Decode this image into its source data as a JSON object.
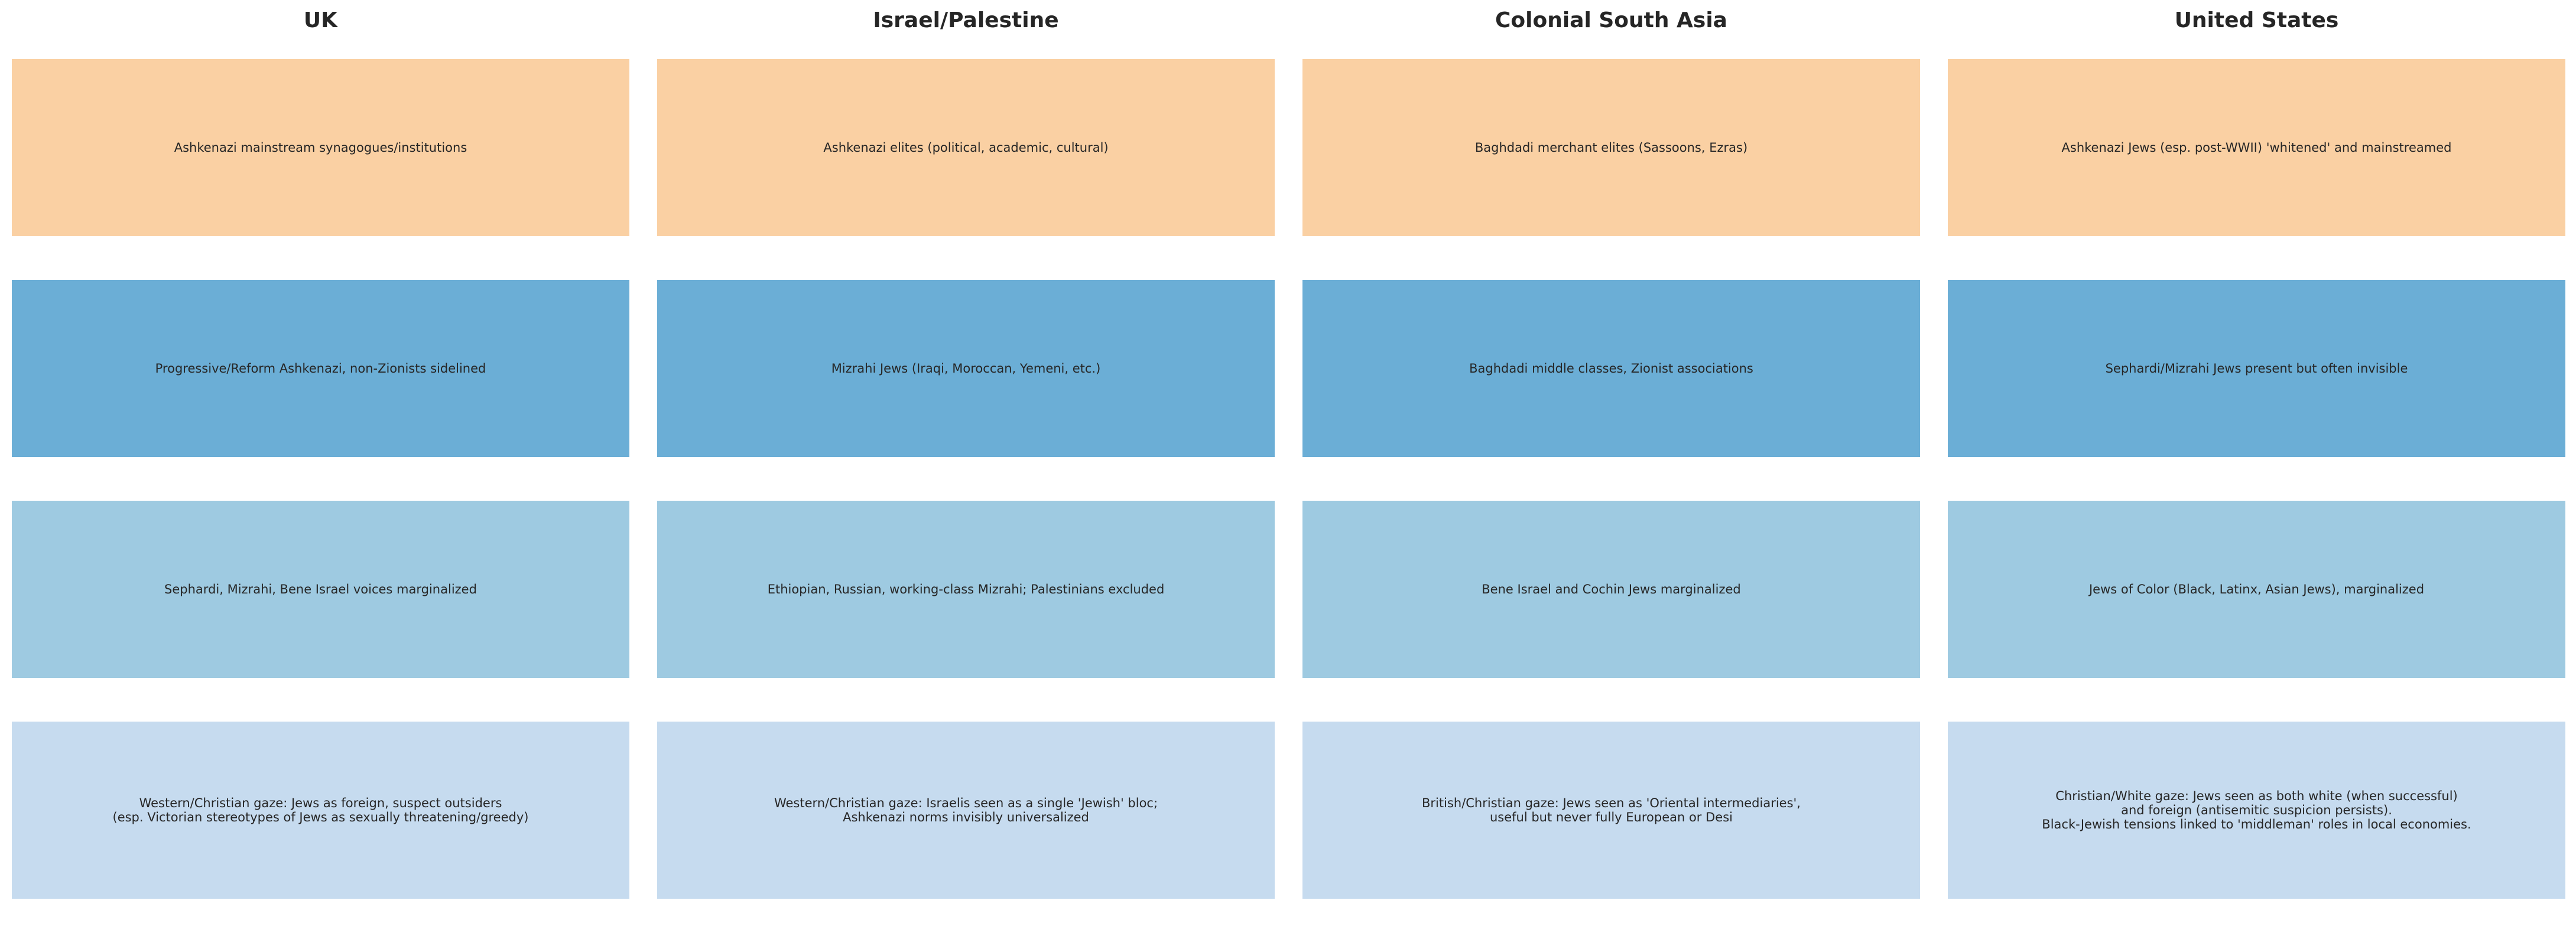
{
  "tier_colors": [
    "#fad0a3",
    "#6baed6",
    "#9ecae1",
    "#c6dbef"
  ],
  "columns": [
    {
      "title": "UK",
      "tiers": [
        "Ashkenazi mainstream synagogues/institutions",
        "Progressive/Reform Ashkenazi, non-Zionists sidelined",
        "Sephardi, Mizrahi, Bene Israel voices marginalized",
        "Western/Christian gaze: Jews as foreign, suspect outsiders\n(esp. Victorian stereotypes of Jews as sexually threatening/greedy)"
      ]
    },
    {
      "title": "Israel/Palestine",
      "tiers": [
        "Ashkenazi elites (political, academic, cultural)",
        "Mizrahi Jews (Iraqi, Moroccan, Yemeni, etc.)",
        "Ethiopian, Russian, working-class Mizrahi; Palestinians excluded",
        "Western/Christian gaze: Israelis seen as a single 'Jewish' bloc;\nAshkenazi norms invisibly universalized"
      ]
    },
    {
      "title": "Colonial South Asia",
      "tiers": [
        "Baghdadi merchant elites (Sassoons, Ezras)",
        "Baghdadi middle classes, Zionist associations",
        "Bene Israel and Cochin Jews marginalized",
        "British/Christian gaze: Jews seen as 'Oriental intermediaries',\nuseful but never fully European or Desi"
      ]
    },
    {
      "title": "United States",
      "tiers": [
        "Ashkenazi Jews (esp. post-WWII) 'whitened' and mainstreamed",
        "Sephardi/Mizrahi Jews present but often invisible",
        "Jews of Color (Black, Latinx, Asian Jews), marginalized",
        "Christian/White gaze: Jews seen as both white (when successful)\nand foreign (antisemitic suspicion persists).\nBlack-Jewish tensions linked to 'middleman' roles in local economies."
      ]
    }
  ]
}
